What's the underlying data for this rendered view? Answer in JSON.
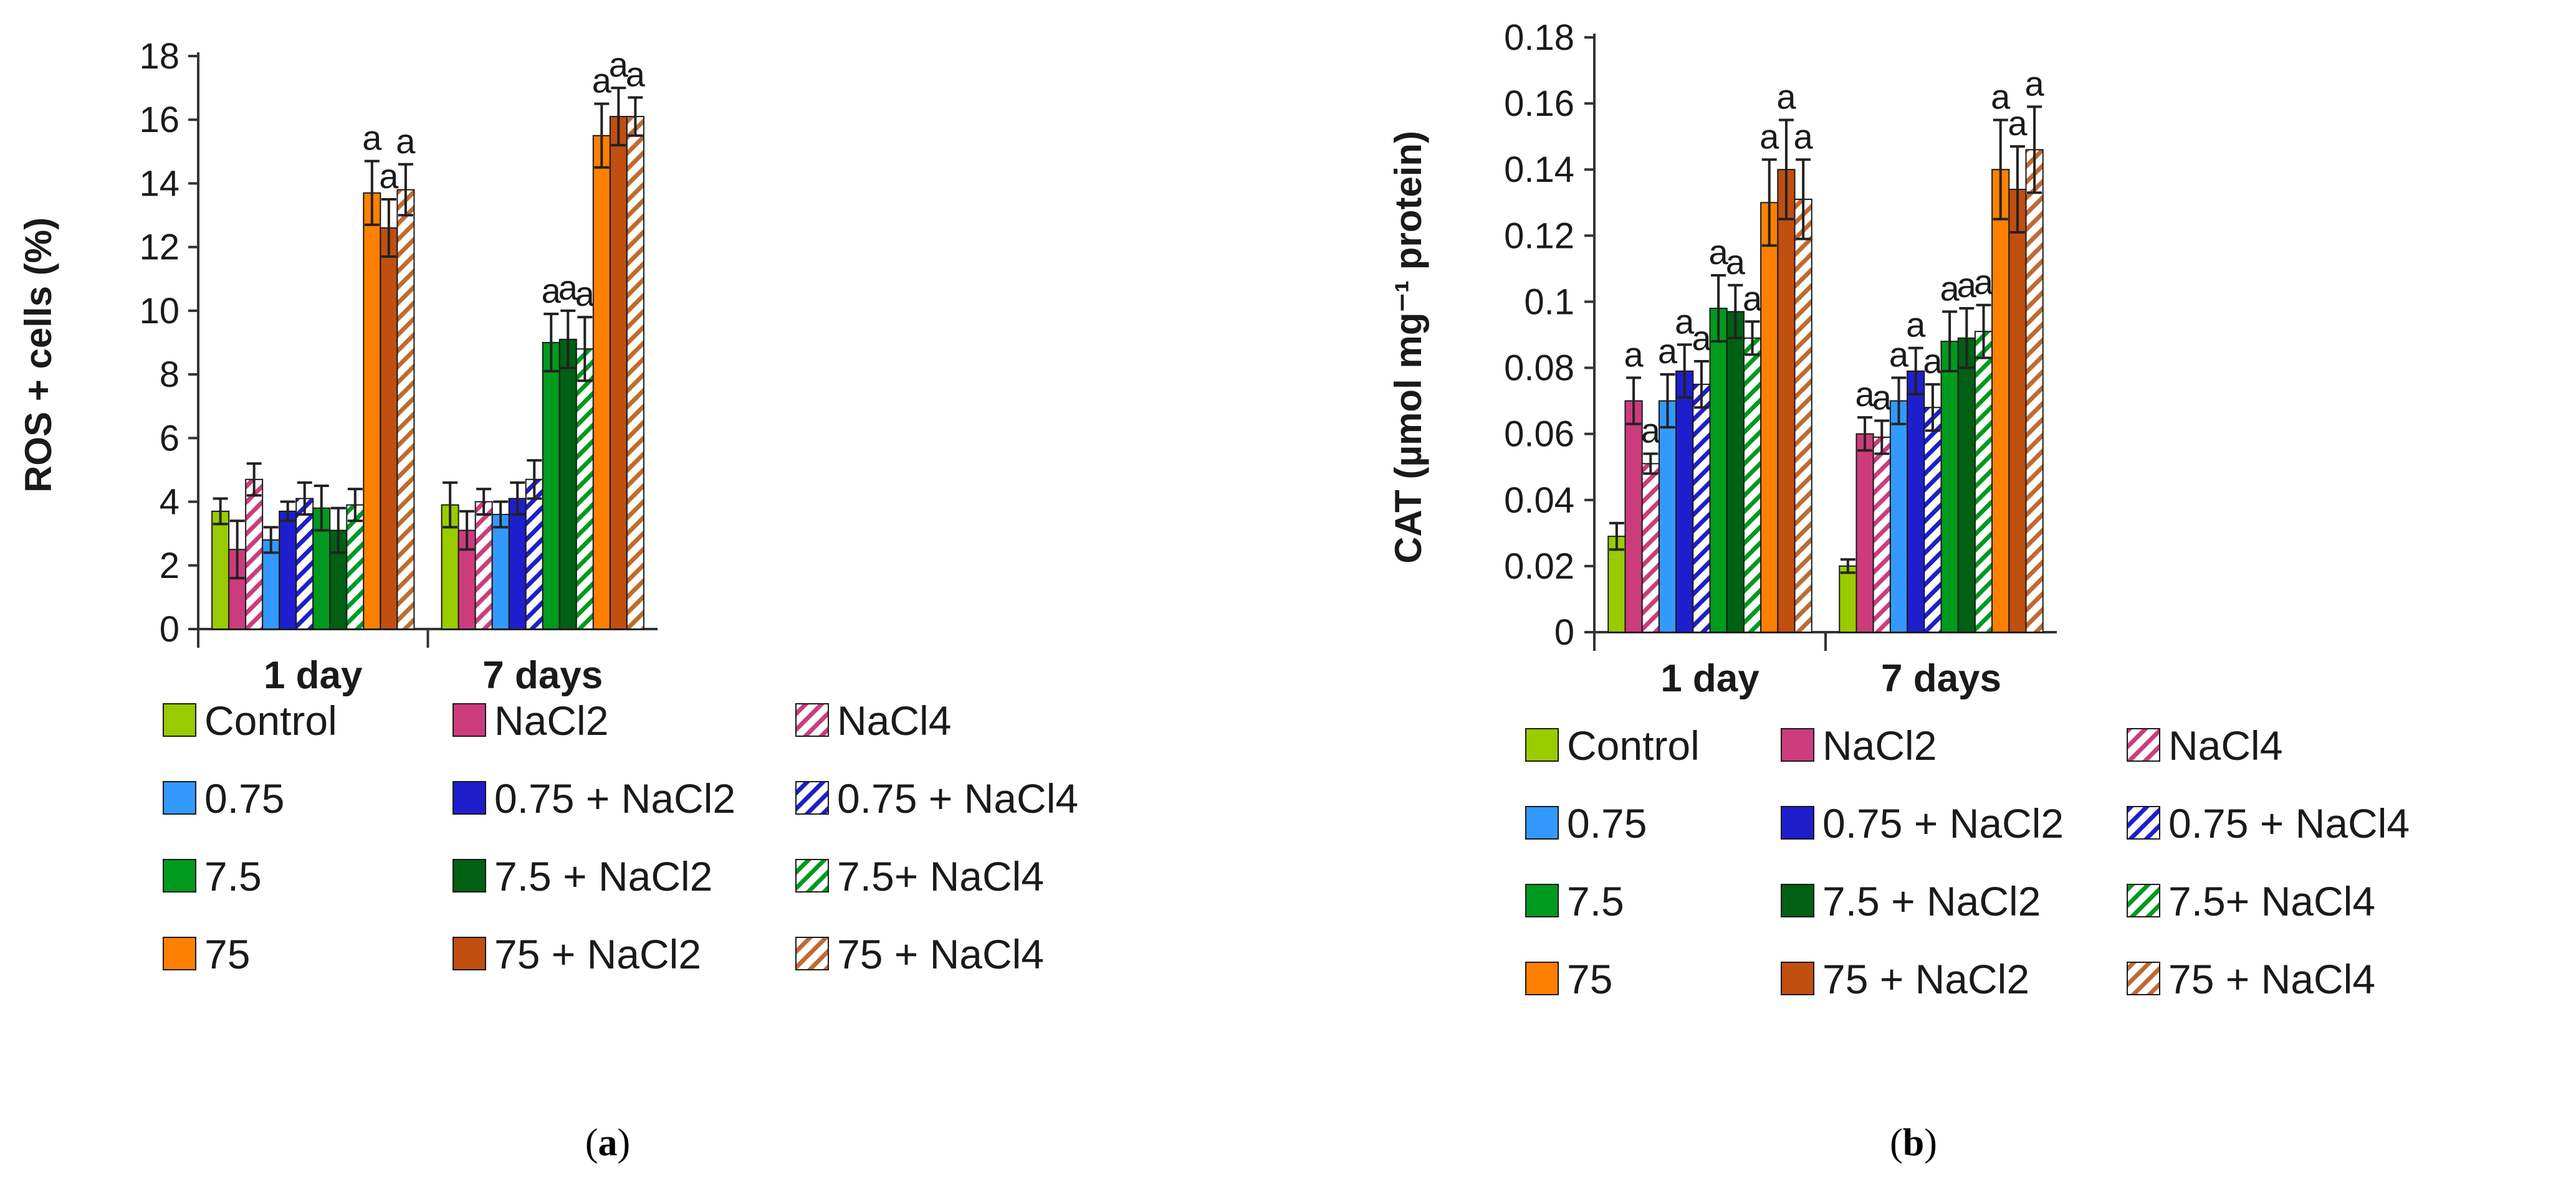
{
  "series": [
    {
      "name": "Control",
      "color": "#99cc00",
      "hatch": false
    },
    {
      "name": "NaCl2",
      "color": "#cc3c7c",
      "hatch": false
    },
    {
      "name": "NaCl4",
      "color": "#cc3c7c",
      "hatch": true
    },
    {
      "name": "0.75",
      "color": "#3399ff",
      "hatch": false
    },
    {
      "name": "0.75 + NaCl2",
      "color": "#1e1ecc",
      "hatch": false
    },
    {
      "name": "0.75 + NaCl4",
      "color": "#1e1ecc",
      "hatch": true
    },
    {
      "name": "7.5",
      "color": "#009a1e",
      "hatch": false
    },
    {
      "name": "7.5 + NaCl2",
      "color": "#006014",
      "hatch": false
    },
    {
      "name": "7.5+ NaCl4",
      "color": "#009a1e",
      "hatch": true
    },
    {
      "name": "75",
      "color": "#ff8000",
      "hatch": false
    },
    {
      "name": "75 + NaCl2",
      "color": "#c04f10",
      "hatch": false
    },
    {
      "name": "75 + NaCl4",
      "color": "#c06a30",
      "hatch": true
    }
  ],
  "chart_data": [
    {
      "type": "bar",
      "panel_label": "a",
      "ylabel": "ROS + cells (%)",
      "categories": [
        "1 day",
        "7 days"
      ],
      "ylim": [
        0,
        18
      ],
      "yticks": [
        "0",
        "2",
        "4",
        "6",
        "8",
        "10",
        "12",
        "14",
        "16",
        "18"
      ],
      "series": [
        {
          "name": "Control",
          "values": [
            3.7,
            3.9
          ],
          "errors": [
            0.4,
            0.7
          ],
          "labels": [
            "",
            ""
          ]
        },
        {
          "name": "NaCl2",
          "values": [
            2.5,
            3.1
          ],
          "errors": [
            0.9,
            0.6
          ],
          "labels": [
            "",
            ""
          ]
        },
        {
          "name": "NaCl4",
          "values": [
            4.7,
            4.0
          ],
          "errors": [
            0.5,
            0.4
          ],
          "labels": [
            "",
            ""
          ]
        },
        {
          "name": "0.75",
          "values": [
            2.8,
            3.6
          ],
          "errors": [
            0.4,
            0.4
          ],
          "labels": [
            "",
            ""
          ]
        },
        {
          "name": "0.75 + NaCl2",
          "values": [
            3.7,
            4.1
          ],
          "errors": [
            0.3,
            0.5
          ],
          "labels": [
            "",
            ""
          ]
        },
        {
          "name": "0.75 + NaCl4",
          "values": [
            4.1,
            4.7
          ],
          "errors": [
            0.5,
            0.6
          ],
          "labels": [
            "",
            ""
          ]
        },
        {
          "name": "7.5",
          "values": [
            3.8,
            9.0
          ],
          "errors": [
            0.7,
            0.9
          ],
          "labels": [
            "",
            "a"
          ]
        },
        {
          "name": "7.5 + NaCl2",
          "values": [
            3.1,
            9.1
          ],
          "errors": [
            0.7,
            0.9
          ],
          "labels": [
            "",
            "a"
          ]
        },
        {
          "name": "7.5+ NaCl4",
          "values": [
            3.9,
            8.8
          ],
          "errors": [
            0.5,
            1.0
          ],
          "labels": [
            "",
            "a"
          ]
        },
        {
          "name": "75",
          "values": [
            13.7,
            15.5
          ],
          "errors": [
            1.0,
            1.0
          ],
          "labels": [
            "a",
            "a"
          ]
        },
        {
          "name": "75 + NaCl2",
          "values": [
            12.6,
            16.1
          ],
          "errors": [
            0.9,
            0.9
          ],
          "labels": [
            "a",
            "a"
          ]
        },
        {
          "name": "75 + NaCl4",
          "values": [
            13.8,
            16.1
          ],
          "errors": [
            0.8,
            0.6
          ],
          "labels": [
            "a",
            "a"
          ]
        }
      ]
    },
    {
      "type": "bar",
      "panel_label": "b",
      "ylabel": "CAT (µmol mg⁻¹ protein)",
      "categories": [
        "1 day",
        "7 days"
      ],
      "ylim": [
        0,
        0.18
      ],
      "yticks": [
        "0",
        "0.02",
        "0.04",
        "0.06",
        "0.08",
        "0.1",
        "0.12",
        "0.14",
        "0.16",
        "0.18"
      ],
      "series": [
        {
          "name": "Control",
          "values": [
            0.029,
            0.02
          ],
          "errors": [
            0.004,
            0.002
          ],
          "labels": [
            "",
            ""
          ]
        },
        {
          "name": "NaCl2",
          "values": [
            0.07,
            0.06
          ],
          "errors": [
            0.007,
            0.005
          ],
          "labels": [
            "a",
            "a"
          ]
        },
        {
          "name": "NaCl4",
          "values": [
            0.051,
            0.059
          ],
          "errors": [
            0.003,
            0.005
          ],
          "labels": [
            "a",
            "a"
          ]
        },
        {
          "name": "0.75",
          "values": [
            0.07,
            0.07
          ],
          "errors": [
            0.008,
            0.007
          ],
          "labels": [
            "a",
            "a"
          ]
        },
        {
          "name": "0.75 + NaCl2",
          "values": [
            0.079,
            0.079
          ],
          "errors": [
            0.008,
            0.007
          ],
          "labels": [
            "a",
            "a"
          ]
        },
        {
          "name": "0.75 + NaCl4",
          "values": [
            0.075,
            0.068
          ],
          "errors": [
            0.007,
            0.007
          ],
          "labels": [
            "a",
            "a"
          ]
        },
        {
          "name": "7.5",
          "values": [
            0.098,
            0.088
          ],
          "errors": [
            0.01,
            0.009
          ],
          "labels": [
            "a",
            "a"
          ]
        },
        {
          "name": "7.5 + NaCl2",
          "values": [
            0.097,
            0.089
          ],
          "errors": [
            0.008,
            0.009
          ],
          "labels": [
            "a",
            "a"
          ]
        },
        {
          "name": "7.5+ NaCl4",
          "values": [
            0.089,
            0.091
          ],
          "errors": [
            0.005,
            0.008
          ],
          "labels": [
            "a",
            "a"
          ]
        },
        {
          "name": "75",
          "values": [
            0.13,
            0.14
          ],
          "errors": [
            0.013,
            0.015
          ],
          "labels": [
            "a",
            "a"
          ]
        },
        {
          "name": "75 + NaCl2",
          "values": [
            0.14,
            0.134
          ],
          "errors": [
            0.015,
            0.013
          ],
          "labels": [
            "a",
            "a"
          ]
        },
        {
          "name": "75 + NaCl4",
          "values": [
            0.131,
            0.146
          ],
          "errors": [
            0.012,
            0.013
          ],
          "labels": [
            "a",
            "a"
          ]
        }
      ]
    }
  ]
}
